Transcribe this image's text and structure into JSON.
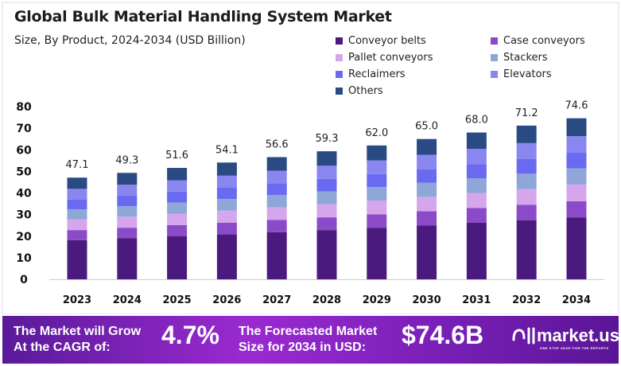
{
  "chart_data": {
    "type": "bar",
    "stacked": true,
    "title": "Global Bulk Material Handling System Market",
    "subtitle": "Size, By Product, 2024-2034 (USD Billion)",
    "categories": [
      "2023",
      "2024",
      "2025",
      "2026",
      "2027",
      "2028",
      "2029",
      "2030",
      "2031",
      "2032",
      "2034"
    ],
    "totals": [
      "47.1",
      "49.3",
      "51.6",
      "54.1",
      "56.6",
      "59.3",
      "62.0",
      "65.0",
      "68.0",
      "71.2",
      "74.6"
    ],
    "ylim": [
      0,
      80
    ],
    "yticks": [
      0,
      10,
      20,
      30,
      40,
      50,
      60,
      70,
      80
    ],
    "legend_position": "top-right",
    "grid": false,
    "series": [
      {
        "name": "Conveyor belts",
        "color": "#4a1a7e",
        "values": [
          18.1,
          19.0,
          19.9,
          20.8,
          21.8,
          22.8,
          23.9,
          25.0,
          26.2,
          27.4,
          28.7
        ]
      },
      {
        "name": "Case conveyors",
        "color": "#8b4bc8",
        "values": [
          4.7,
          4.9,
          5.2,
          5.4,
          5.7,
          5.9,
          6.2,
          6.5,
          6.8,
          7.1,
          7.5
        ]
      },
      {
        "name": "Pallet conveyors",
        "color": "#d6a6ec",
        "values": [
          4.9,
          5.1,
          5.3,
          5.6,
          5.8,
          6.1,
          6.4,
          6.7,
          7.0,
          7.3,
          7.7
        ]
      },
      {
        "name": "Stackers",
        "color": "#8fa6d8",
        "values": [
          4.7,
          4.9,
          5.2,
          5.4,
          5.7,
          5.9,
          6.2,
          6.5,
          6.8,
          7.1,
          7.5
        ]
      },
      {
        "name": "Reclaimers",
        "color": "#6a6af0",
        "values": [
          4.6,
          4.8,
          5.0,
          5.2,
          5.5,
          5.8,
          6.0,
          6.3,
          6.6,
          6.9,
          7.2
        ]
      },
      {
        "name": "Elevators",
        "color": "#8a86f0",
        "values": [
          4.9,
          5.1,
          5.3,
          5.6,
          5.8,
          6.1,
          6.4,
          6.7,
          7.0,
          7.3,
          7.7
        ]
      },
      {
        "name": "Others",
        "color": "#2a4a84",
        "values": [
          5.2,
          5.5,
          5.7,
          6.1,
          6.3,
          6.7,
          6.9,
          7.3,
          7.6,
          8.1,
          8.3
        ]
      }
    ]
  },
  "footer": {
    "cagr_label": "The Market will Grow At the CAGR of:",
    "cagr_value": "4.7%",
    "forecast_label": "The Forecasted Market Size for 2034 in USD:",
    "forecast_value": "$74.6B",
    "brand": "market.us",
    "tagline": "ONE STOP SHOP FOR THE REPORTS"
  }
}
